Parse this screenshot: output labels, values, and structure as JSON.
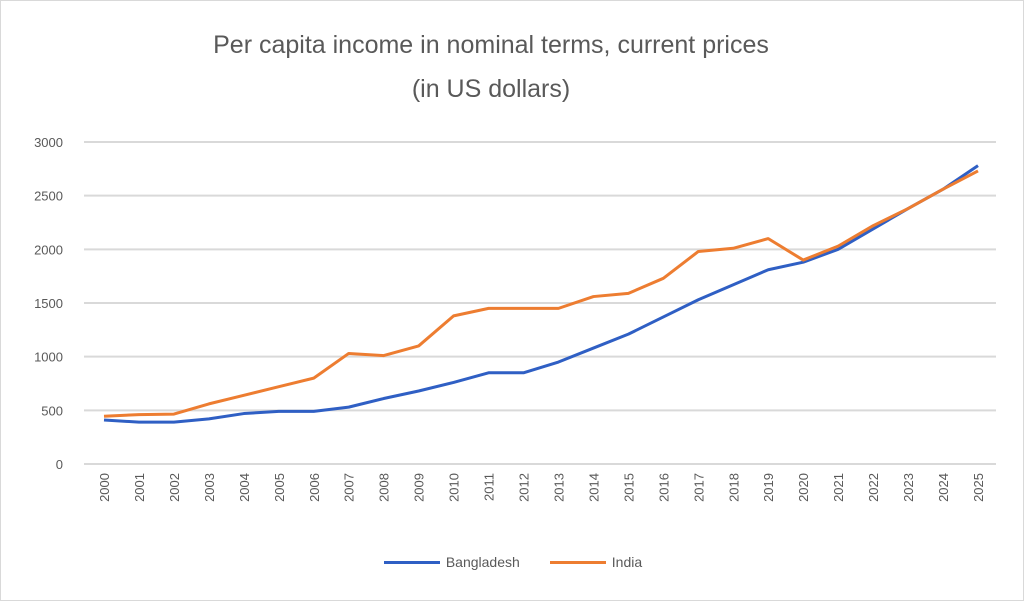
{
  "chart_data": {
    "type": "line",
    "title": "Per capita income  in nominal  terms, current prices",
    "subtitle": "(in US dollars)",
    "xlabel": "",
    "ylabel": "",
    "ylim": [
      0,
      3000
    ],
    "yticks": [
      "0",
      "500",
      "1000",
      "1500",
      "2000",
      "2500",
      "3000"
    ],
    "grid": true,
    "legend_position": "bottom",
    "categories": [
      "2000",
      "2001",
      "2002",
      "2003",
      "2004",
      "2005",
      "2006",
      "2007",
      "2008",
      "2009",
      "2010",
      "2011",
      "2012",
      "2013",
      "2014",
      "2015",
      "2016",
      "2017",
      "2018",
      "2019",
      "2020",
      "2021",
      "2022",
      "2023",
      "2024",
      "2025"
    ],
    "series": [
      {
        "name": "Bangladesh",
        "color": "#2f5fc4",
        "values": [
          410,
          390,
          390,
          420,
          470,
          490,
          490,
          530,
          610,
          680,
          760,
          850,
          850,
          950,
          1080,
          1210,
          1370,
          1530,
          1670,
          1810,
          1880,
          2000,
          2190,
          2380,
          2560,
          2780
        ]
      },
      {
        "name": "India",
        "color": "#ed7d31",
        "values": [
          445,
          460,
          465,
          560,
          640,
          720,
          800,
          1030,
          1010,
          1100,
          1380,
          1450,
          1450,
          1450,
          1560,
          1590,
          1730,
          1980,
          2010,
          2100,
          1900,
          2030,
          2220,
          2380,
          2560,
          2730
        ]
      }
    ]
  }
}
